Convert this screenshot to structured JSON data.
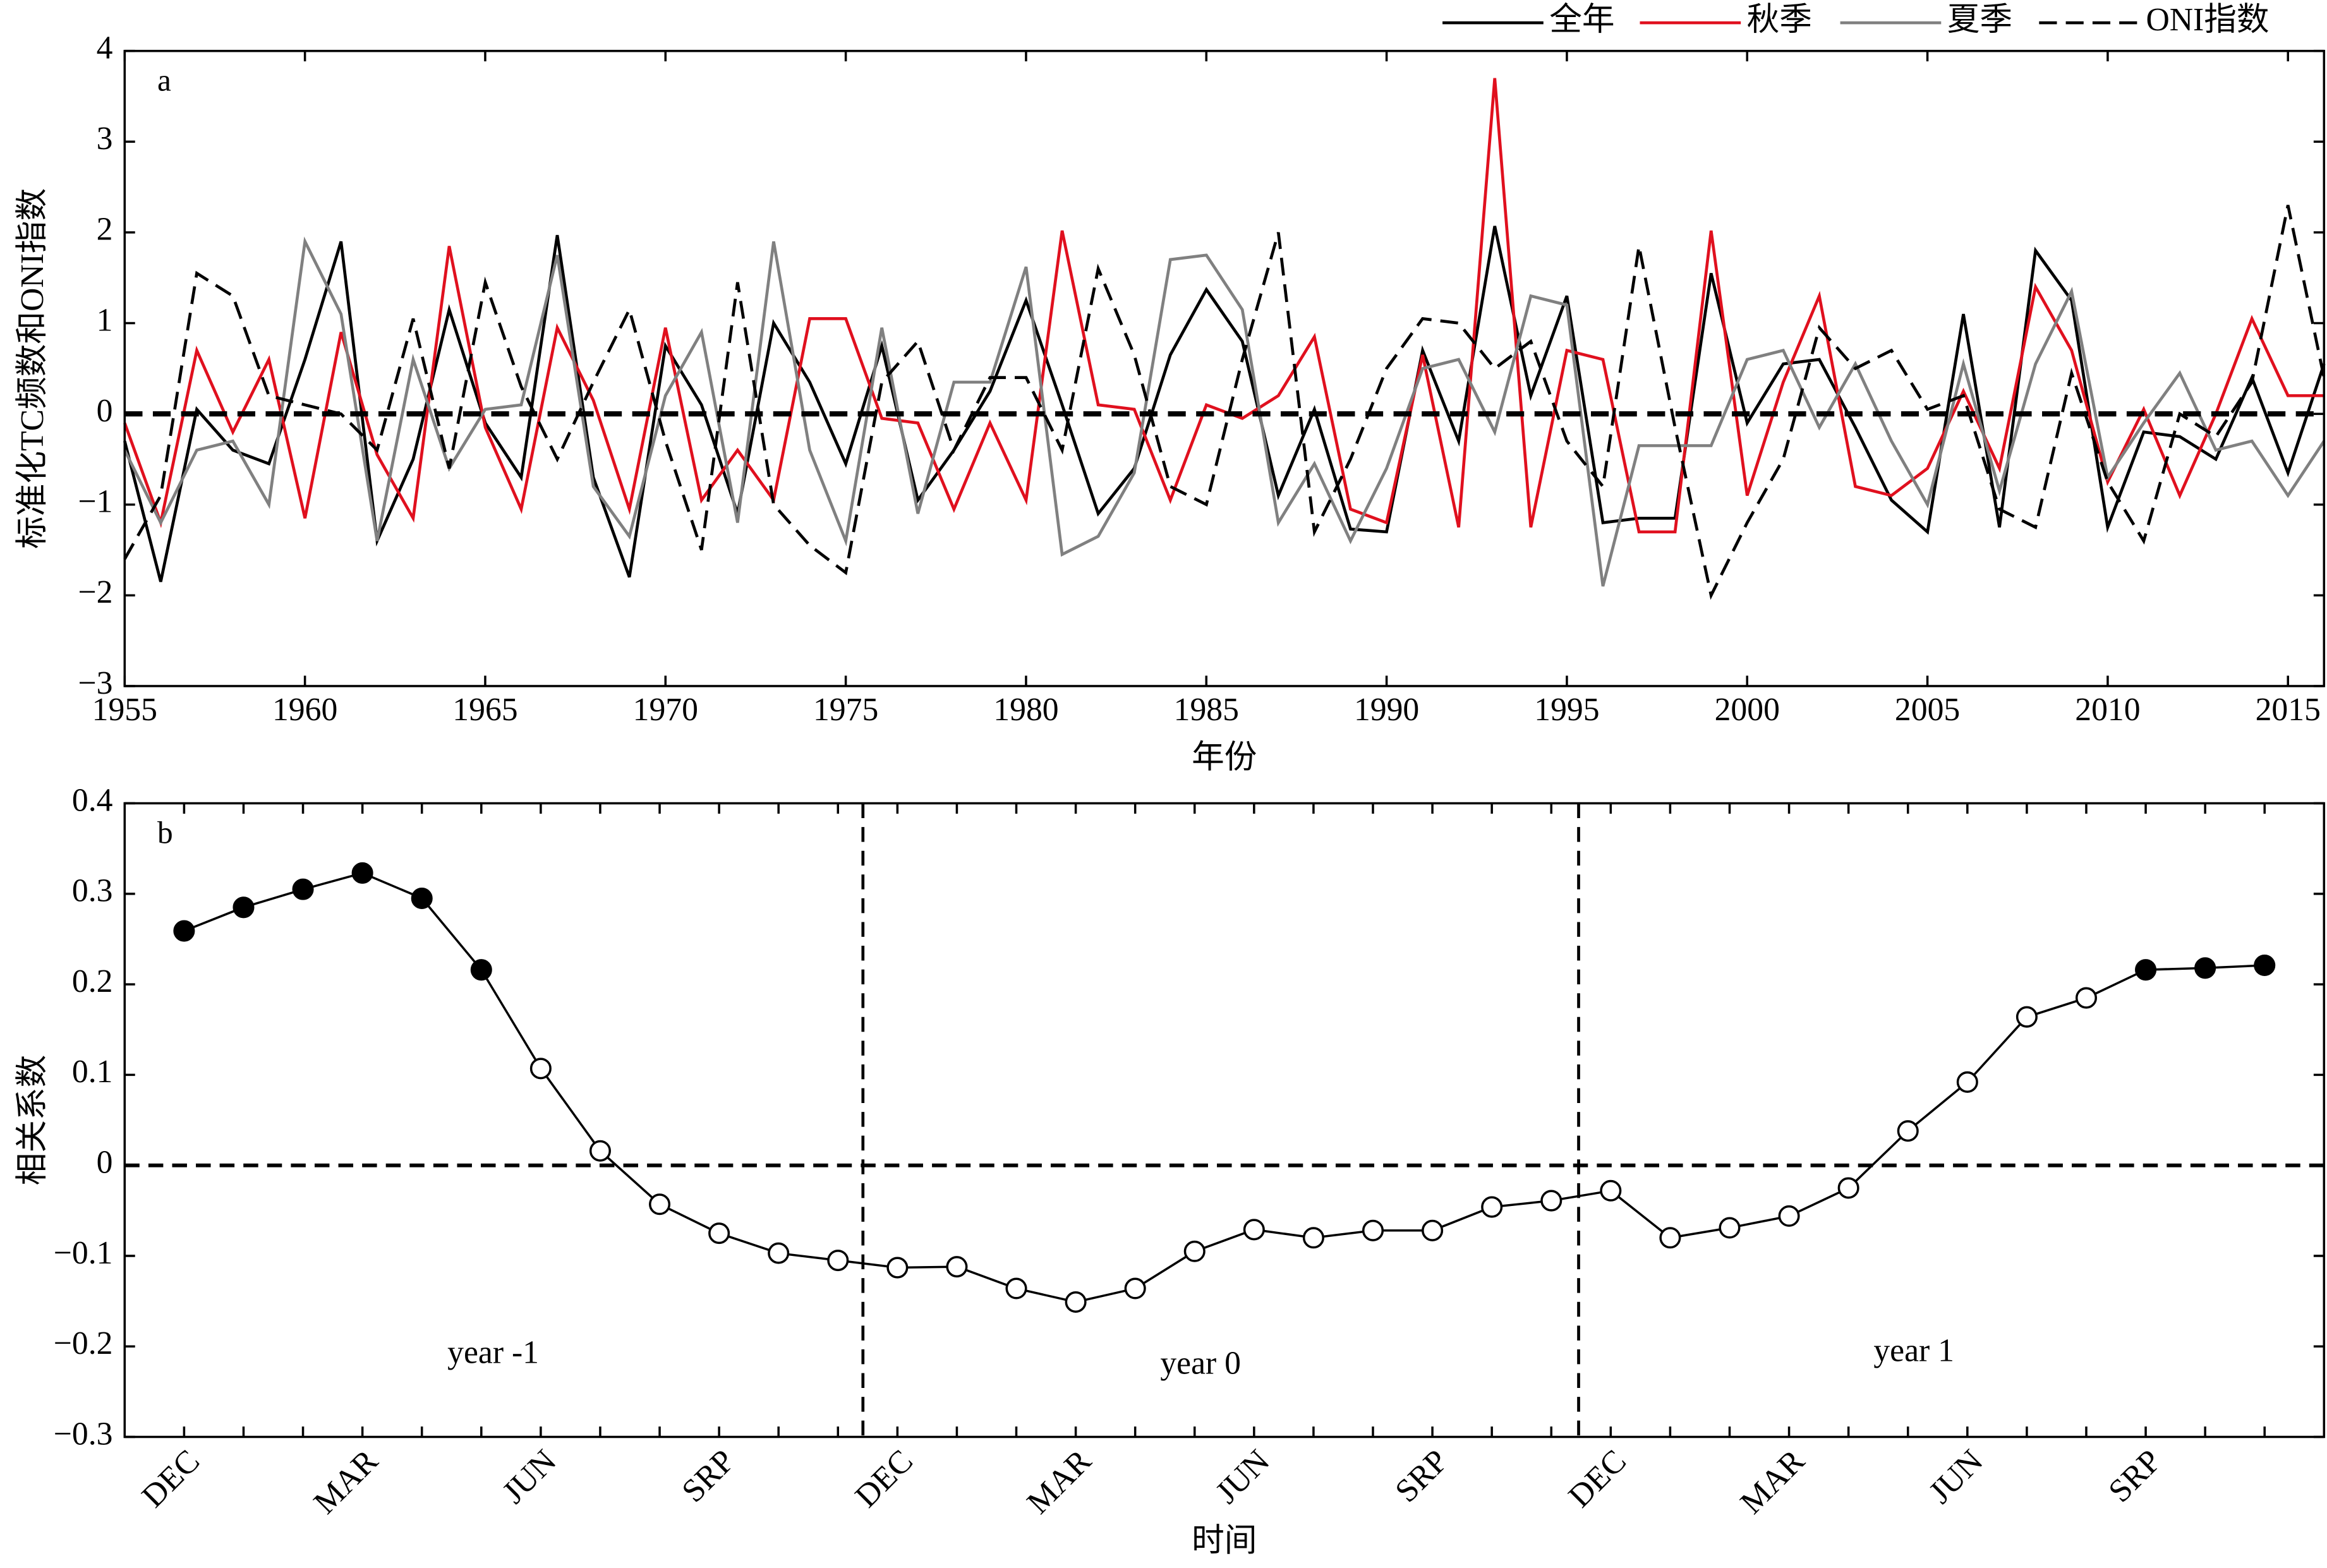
{
  "chart_data": [
    {
      "type": "line",
      "panel_label": "a",
      "xlabel": "年份",
      "ylabel": "标准化TC频数和ONI指数",
      "x": [
        1955,
        1956,
        1957,
        1958,
        1959,
        1960,
        1961,
        1962,
        1963,
        1964,
        1965,
        1966,
        1967,
        1968,
        1969,
        1970,
        1971,
        1972,
        1973,
        1974,
        1975,
        1976,
        1977,
        1978,
        1979,
        1980,
        1981,
        1982,
        1983,
        1984,
        1985,
        1986,
        1987,
        1988,
        1989,
        1990,
        1991,
        1992,
        1993,
        1994,
        1995,
        1996,
        1997,
        1998,
        1999,
        2000,
        2001,
        2002,
        2003,
        2004,
        2005,
        2006,
        2007,
        2008,
        2009,
        2010,
        2011,
        2012,
        2013,
        2014,
        2015,
        2016
      ],
      "series": [
        {
          "name": "全年",
          "color": "#000000",
          "linestyle": "solid",
          "values": [
            -0.3,
            -1.85,
            0.05,
            -0.4,
            -0.55,
            0.6,
            1.9,
            -1.4,
            -0.5,
            1.15,
            -0.1,
            -0.7,
            1.97,
            -0.7,
            -1.8,
            0.75,
            0.1,
            -1.1,
            1.0,
            0.35,
            -0.55,
            0.75,
            -0.95,
            -0.4,
            0.25,
            1.25,
            0.1,
            -1.1,
            -0.6,
            0.65,
            1.37,
            0.8,
            -0.9,
            0.05,
            -1.27,
            -1.3,
            0.7,
            -0.3,
            2.07,
            0.2,
            1.3,
            -1.2,
            -1.15,
            -1.15,
            1.55,
            -0.1,
            0.55,
            0.6,
            -0.15,
            -0.95,
            -1.3,
            1.1,
            -1.25,
            1.8,
            1.25,
            -1.25,
            -0.2,
            -0.25,
            -0.5,
            0.4,
            -0.65,
            0.55
          ]
        },
        {
          "name": "秋季",
          "color": "#e0101e",
          "linestyle": "solid",
          "values": [
            -0.1,
            -1.2,
            0.7,
            -0.2,
            0.6,
            -1.15,
            0.9,
            -0.45,
            -1.15,
            1.85,
            -0.15,
            -1.05,
            0.95,
            0.15,
            -1.05,
            0.95,
            -0.95,
            -0.4,
            -0.95,
            1.05,
            1.05,
            -0.05,
            -0.1,
            -1.05,
            -0.1,
            -0.95,
            2.02,
            0.1,
            0.05,
            -0.95,
            0.1,
            -0.05,
            0.2,
            0.85,
            -1.05,
            -1.2,
            0.65,
            -1.25,
            3.7,
            -1.25,
            0.7,
            0.6,
            -1.3,
            -1.3,
            2.02,
            -0.9,
            0.35,
            1.3,
            -0.8,
            -0.9,
            -0.6,
            0.25,
            -0.6,
            1.4,
            0.7,
            -0.75,
            0.05,
            -0.9,
            0.0,
            1.05,
            0.2,
            0.2
          ]
        },
        {
          "name": "夏季",
          "color": "#808080",
          "linestyle": "solid",
          "values": [
            -0.4,
            -1.2,
            -0.4,
            -0.3,
            -1.0,
            1.9,
            1.1,
            -1.4,
            0.6,
            -0.6,
            0.05,
            0.1,
            1.75,
            -0.8,
            -1.35,
            0.2,
            0.9,
            -1.2,
            1.9,
            -0.4,
            -1.4,
            0.95,
            -1.1,
            0.35,
            0.35,
            1.62,
            -1.55,
            -1.35,
            -0.65,
            1.7,
            1.75,
            1.15,
            -1.2,
            -0.55,
            -1.4,
            -0.6,
            0.5,
            0.6,
            -0.2,
            1.3,
            1.2,
            -1.9,
            -0.35,
            -0.35,
            -0.35,
            0.6,
            0.7,
            -0.15,
            0.55,
            -0.3,
            -1.0,
            0.55,
            -0.85,
            0.55,
            1.35,
            -0.7,
            -0.1,
            0.45,
            -0.4,
            -0.3,
            -0.9,
            -0.3
          ]
        },
        {
          "name": "ONI指数",
          "color": "#000000",
          "linestyle": "dashed",
          "values": [
            -1.6,
            -0.9,
            1.55,
            1.3,
            0.2,
            0.1,
            0.0,
            -0.4,
            1.05,
            -0.6,
            1.45,
            0.3,
            -0.5,
            0.35,
            1.15,
            -0.3,
            -1.5,
            1.45,
            -1.0,
            -1.45,
            -1.75,
            0.35,
            0.8,
            -0.4,
            0.4,
            0.4,
            -0.4,
            1.6,
            0.65,
            -0.8,
            -1.0,
            0.6,
            2.0,
            -1.3,
            -0.5,
            0.5,
            1.05,
            1.0,
            0.5,
            0.8,
            -0.3,
            -0.8,
            1.85,
            -0.15,
            -2.0,
            -1.2,
            -0.5,
            0.95,
            0.5,
            0.7,
            0.05,
            0.2,
            -1.05,
            -1.25,
            0.45,
            -0.75,
            -1.4,
            0.0,
            -0.25,
            0.35,
            2.3,
            0.4
          ]
        }
      ],
      "xlim": [
        1955,
        2016
      ],
      "xticks": [
        1955,
        1960,
        1965,
        1970,
        1975,
        1980,
        1985,
        1990,
        1995,
        2000,
        2005,
        2010,
        2015
      ],
      "ylim": [
        -3,
        4
      ],
      "yticks": [
        {
          "value": -3,
          "label": "−3"
        },
        {
          "value": -2,
          "label": "−2"
        },
        {
          "value": -1,
          "label": "−1"
        },
        0,
        1,
        2,
        3,
        4
      ],
      "hline": 0,
      "legend": "top-right"
    },
    {
      "type": "line",
      "panel_label": "b",
      "xlabel": "时间",
      "ylabel": "相关系数",
      "categories": [
        "DEC",
        null,
        null,
        "MAR",
        null,
        null,
        "JUN",
        null,
        null,
        "SRP",
        null,
        null,
        "DEC",
        null,
        null,
        "MAR",
        null,
        null,
        "JUN",
        null,
        null,
        "SRP",
        null,
        null,
        "DEC",
        null,
        null,
        "MAR",
        null,
        null,
        "JUN",
        null,
        null,
        "SRP",
        null,
        null
      ],
      "values": [
        0.259,
        0.285,
        0.305,
        0.323,
        0.295,
        0.216,
        0.107,
        0.016,
        -0.043,
        -0.075,
        -0.097,
        -0.105,
        -0.113,
        -0.112,
        -0.136,
        -0.151,
        -0.136,
        -0.095,
        -0.071,
        -0.08,
        -0.072,
        -0.072,
        -0.046,
        -0.039,
        -0.028,
        -0.08,
        -0.069,
        -0.056,
        -0.025,
        0.038,
        0.092,
        0.164,
        0.185,
        0.216,
        0.218,
        0.221
      ],
      "marker_filled": [
        true,
        true,
        true,
        true,
        true,
        true,
        false,
        false,
        false,
        false,
        false,
        false,
        false,
        false,
        false,
        false,
        false,
        false,
        false,
        false,
        false,
        false,
        false,
        false,
        false,
        false,
        false,
        false,
        false,
        false,
        false,
        false,
        false,
        true,
        true,
        true
      ],
      "color": "#000000",
      "ylim": [
        -0.3,
        0.4
      ],
      "yticks": [
        {
          "value": -0.3,
          "label": "−0.3"
        },
        {
          "value": -0.2,
          "label": "−0.2"
        },
        {
          "value": -0.1,
          "label": "−0.1"
        },
        0,
        0.1,
        0.2,
        0.3,
        0.4
      ],
      "hline": 0,
      "annotations": [
        "year -1",
        "year 0",
        "year 1"
      ]
    }
  ]
}
